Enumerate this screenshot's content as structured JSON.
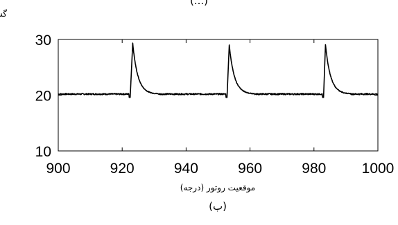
{
  "chart_data": {
    "type": "line",
    "ylabel": "گشتاور (نیوتون.متر)",
    "xlabel": "موقعیت روتور (درجه)",
    "caption": "(ب)",
    "top_caption_fragment": "(...)",
    "xlim": [
      900,
      1000
    ],
    "ylim": [
      10,
      30
    ],
    "x_ticks": [
      900,
      920,
      940,
      960,
      980,
      1000
    ],
    "y_ticks": [
      10,
      20,
      30
    ],
    "grid": false,
    "line_color": "#000000",
    "series": [
      {
        "baseline": 20.2,
        "peaks": [
          {
            "rise_start": 922.5,
            "peak_x": 923.3,
            "peak_y": 29.3
          },
          {
            "rise_start": 952.8,
            "peak_x": 953.5,
            "peak_y": 29.0
          },
          {
            "rise_start": 983.0,
            "peak_x": 983.6,
            "peak_y": 29.1
          }
        ],
        "decay_width_deg": 1.6,
        "pre_dip_y": 19.6
      }
    ]
  }
}
